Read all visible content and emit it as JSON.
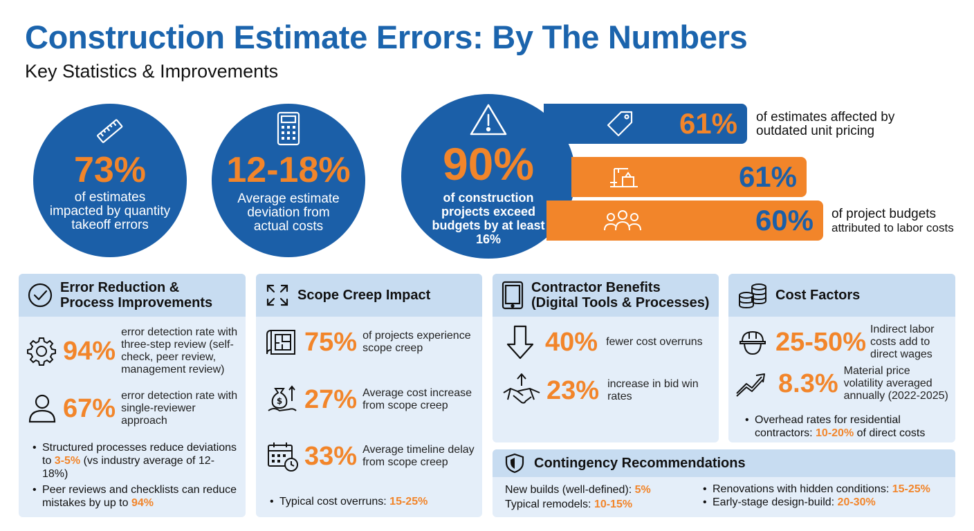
{
  "header": {
    "title": "Construction Estimate Errors: By The Numbers",
    "subtitle": "Key Statistics & Improvements"
  },
  "circles": [
    {
      "icon": "ruler-icon",
      "value": "73%",
      "text": "of estimates impacted by quantity takeoff errors"
    },
    {
      "icon": "calculator-icon",
      "value": "12-18%",
      "text": "Average estimate deviation from actual costs"
    },
    {
      "icon": "warning-icon",
      "value": "90%",
      "text": "of construction projects exceed budgets by at least 16%"
    }
  ],
  "bars": [
    {
      "icon": "price-tag-icon",
      "value": "61%",
      "text_line1": "of estimates affected by",
      "text_line2": "outdated unit pricing"
    },
    {
      "icon": "crane-icon",
      "value": "61%"
    },
    {
      "icon": "team-icon",
      "value": "60%",
      "text_line1": "of project budgets",
      "text_line2": "attributed to labor costs"
    }
  ],
  "error_reduction": {
    "title_line1": "Error Reduction &",
    "title_line2": "Process Improvements",
    "stats": [
      {
        "icon": "gear-icon",
        "value": "94%",
        "text": "error detection rate with three-step review (self-check, peer review, management review)"
      },
      {
        "icon": "person-icon",
        "value": "67%",
        "text": "error detection rate with single-reviewer approach"
      }
    ],
    "bullet1_pre": "Structured processes reduce deviations to ",
    "bullet1_hl": "3-5%",
    "bullet1_post": " (vs industry average of 12-18%)",
    "bullet2_pre": "Peer reviews and checklists can reduce mistakes by up to ",
    "bullet2_hl": "94%"
  },
  "scope_creep": {
    "title": "Scope Creep Impact",
    "stats": [
      {
        "icon": "blueprint-icon",
        "value": "75%",
        "text": "of projects experience scope creep"
      },
      {
        "icon": "money-bag-icon",
        "value": "27%",
        "text": "Average cost increase from scope creep"
      },
      {
        "icon": "calendar-clock-icon",
        "value": "33%",
        "text": "Average timeline delay from scope creep"
      }
    ],
    "bullet_pre": "Typical cost overruns: ",
    "bullet_hl": "15-25%"
  },
  "contractor": {
    "title_line1": "Contractor Benefits",
    "title_line2": "(Digital Tools & Processes)",
    "stats": [
      {
        "icon": "arrow-down-icon",
        "value": "40%",
        "text": "fewer cost overruns"
      },
      {
        "icon": "handshake-icon",
        "value": "23%",
        "text": "increase in bid win rates"
      }
    ]
  },
  "cost_factors": {
    "title": "Cost Factors",
    "stats": [
      {
        "icon": "hard-hat-icon",
        "value": "25-50%",
        "text": "Indirect labor costs add to direct wages"
      },
      {
        "icon": "trend-up-icon",
        "value": "8.3%",
        "text": "Material price volatility averaged annually (2022-2025)"
      }
    ],
    "bullet_pre": "Overhead rates for residential contractors: ",
    "bullet_hl": "10-20%",
    "bullet_post": " of direct costs"
  },
  "contingency": {
    "title": "Contingency Recommendations",
    "items": [
      {
        "label": "New builds (well-defined): ",
        "value": "5%"
      },
      {
        "label": "Typical remodels: ",
        "value": "10-15%"
      },
      {
        "label": "Renovations with hidden conditions: ",
        "value": "15-25%"
      },
      {
        "label": "Early-stage design-build: ",
        "value": "20-30%"
      }
    ]
  }
}
